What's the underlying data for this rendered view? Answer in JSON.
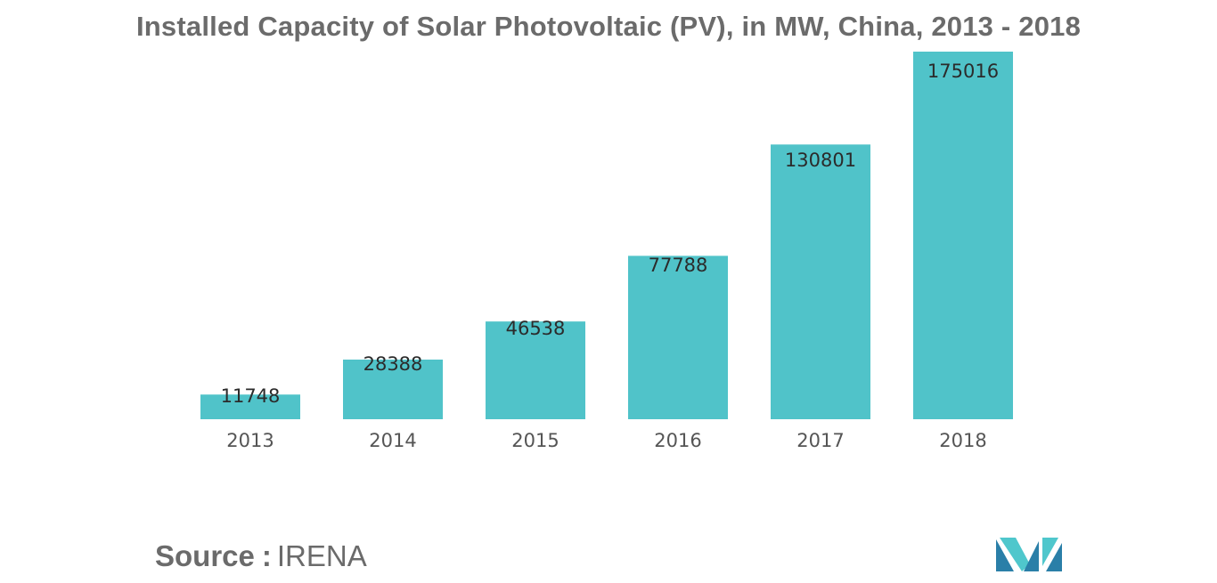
{
  "chart_data": {
    "type": "bar",
    "title": "Installed Capacity of Solar Photovoltaic (PV), in MW, China, 2013 - 2018",
    "categories": [
      "2013",
      "2014",
      "2015",
      "2016",
      "2017",
      "2018"
    ],
    "values": [
      11748,
      28388,
      46538,
      77788,
      130801,
      175016
    ],
    "data_labels": [
      "11748",
      "28388",
      "46538",
      "77788",
      "130801",
      "175016"
    ],
    "xlabel": "",
    "ylabel": "",
    "ylim": [
      0,
      175016
    ],
    "grid": false,
    "legend": "none",
    "bar_color": "#50c3c9"
  },
  "source": {
    "label": "Source",
    "separator": ":",
    "value": "IRENA"
  },
  "colors": {
    "title": "#6b6b6b",
    "tick": "#555555",
    "data_label": "#2b2b2b",
    "logo_dark": "#2a7fa8",
    "logo_light": "#4fc7cc"
  },
  "logo": {
    "icon": "mordor-logo-icon"
  }
}
